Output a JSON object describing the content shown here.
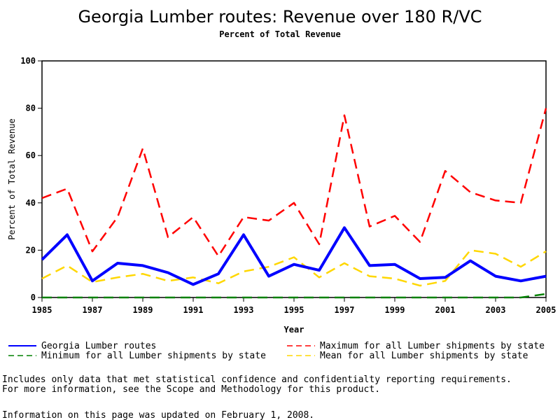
{
  "chart_data": {
    "type": "line",
    "title": "Georgia Lumber routes: Revenue over 180 R/VC",
    "subtitle": "Percent of Total Revenue",
    "xlabel": "Year",
    "ylabel": "Percent of Total Revenue",
    "ylim": [
      0,
      100
    ],
    "xlim": [
      1985,
      2005
    ],
    "yticks": [
      "0",
      "20",
      "40",
      "60",
      "80",
      "100"
    ],
    "xticks": [
      "1985",
      "1987",
      "1989",
      "1991",
      "1993",
      "1995",
      "1997",
      "1999",
      "2001",
      "2003",
      "2005"
    ],
    "x": [
      1985,
      1986,
      1987,
      1988,
      1989,
      1990,
      1991,
      1992,
      1993,
      1994,
      1995,
      1996,
      1997,
      1998,
      1999,
      2000,
      2001,
      2002,
      2003,
      2004,
      2005
    ],
    "series": [
      {
        "name": "Georgia Lumber routes",
        "color": "#0000ff",
        "dash": "solid",
        "values": [
          16,
          26.5,
          7,
          14.5,
          13.5,
          10.5,
          5.5,
          10,
          26.5,
          9,
          14,
          11.5,
          29.5,
          13.5,
          14,
          8,
          8.5,
          15.5,
          9,
          7,
          9
        ]
      },
      {
        "name": "Maximum for all Lumber shipments by state",
        "color": "#ff0000",
        "dash": "dashed",
        "values": [
          42,
          46,
          19.5,
          34,
          63,
          25.5,
          34,
          17.5,
          34,
          32.5,
          40,
          22.5,
          77,
          30,
          34.5,
          23.5,
          53.5,
          44.5,
          41,
          40,
          80
        ]
      },
      {
        "name": "Minimum for all Lumber shipments by state",
        "color": "#008000",
        "dash": "dashed",
        "values": [
          0,
          0,
          0,
          0,
          0,
          0,
          0,
          0,
          0,
          0,
          0,
          0,
          0,
          0,
          0,
          0,
          0,
          0,
          0,
          0,
          1.5
        ]
      },
      {
        "name": "Mean for all Lumber shipments by state",
        "color": "#ffd700",
        "dash": "dashed",
        "values": [
          8,
          13.5,
          6.5,
          8.5,
          10,
          7,
          8.5,
          6,
          11,
          13,
          17,
          8.5,
          14.5,
          9,
          8,
          5,
          7,
          20,
          18.5,
          13,
          19.5
        ]
      }
    ],
    "legend_placement": "bottom"
  },
  "footnote": {
    "line1": "Includes only data that met statistical confidence and confidentialty reporting requirements.",
    "line2": "For more information, see the Scope and Methodology for this product.",
    "updated": "Information on this page was updated on February 1, 2008."
  }
}
